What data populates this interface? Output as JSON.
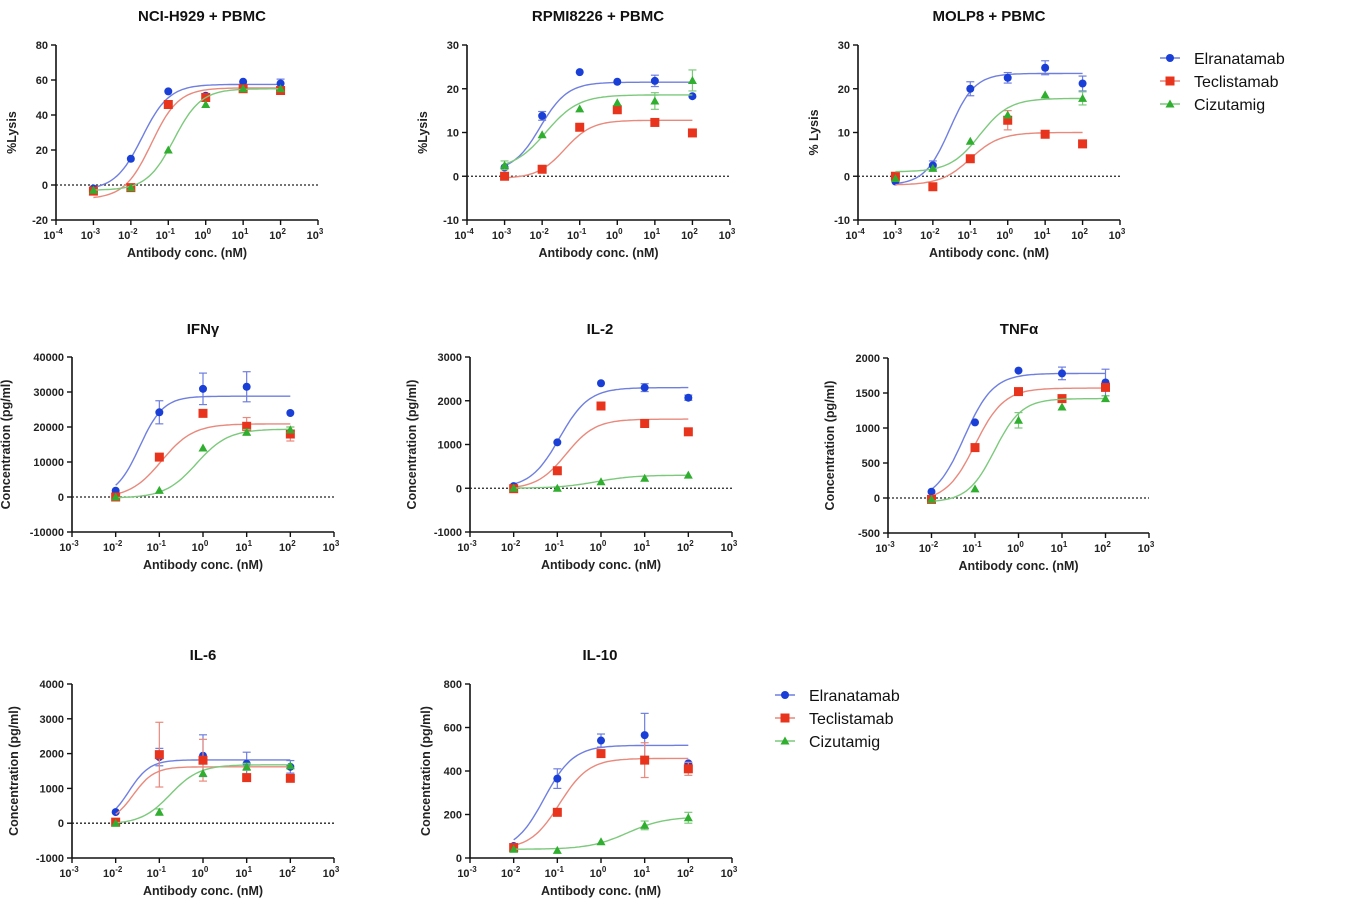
{
  "legend": {
    "entries": [
      {
        "name": "Elranatamab",
        "color": "#1a3fd6",
        "marker": "circle",
        "line_color": "#6f7fe0"
      },
      {
        "name": "Teclistamab",
        "color": "#e8341c",
        "marker": "square",
        "line_color": "#e9897c"
      },
      {
        "name": "Cizutamig",
        "color": "#2fae2f",
        "marker": "triangle",
        "line_color": "#7cc97c"
      }
    ]
  },
  "chart_data": [
    {
      "type": "scatter",
      "title": "NCI-H929 + PBMC",
      "xlabel": "Antibody conc. (nM)",
      "ylabel": "%Lysis",
      "xscale": "log",
      "xlim_exp": [
        -4,
        3
      ],
      "xtick_exps": [
        -4,
        -3,
        -2,
        -1,
        0,
        1,
        2,
        3
      ],
      "ylim": [
        -20,
        80
      ],
      "yticks": [
        -20,
        0,
        20,
        40,
        60,
        80
      ],
      "zero_line": "dotted",
      "x": [
        0.001,
        0.01,
        0.1,
        1,
        10,
        100
      ],
      "series": [
        {
          "name": "Elranatamab",
          "values": [
            -2,
            15,
            53.5,
            51,
            59,
            58
          ],
          "errors": [
            0,
            0,
            0,
            0,
            0,
            2.5
          ],
          "fit": {
            "bottom": -3,
            "top": 57.5,
            "log_ec50": -1.7,
            "hill": 1.2
          }
        },
        {
          "name": "Teclistamab",
          "values": [
            -3.5,
            -1.5,
            46,
            50,
            55,
            54
          ],
          "errors": [
            0,
            0,
            0,
            0,
            0,
            0
          ],
          "fit": {
            "bottom": -8,
            "top": 55.5,
            "log_ec50": -1.45,
            "hill": 1.2
          }
        },
        {
          "name": "Cizutamig",
          "values": [
            -3,
            -1.5,
            20,
            46,
            55,
            55
          ],
          "errors": [
            0,
            0,
            0,
            0,
            0,
            0
          ],
          "fit": {
            "bottom": -3,
            "top": 55,
            "log_ec50": -0.85,
            "hill": 1.2
          }
        }
      ]
    },
    {
      "type": "scatter",
      "title": "RPMI8226 + PBMC",
      "xlabel": "Antibody conc. (nM)",
      "ylabel": "%Lysis",
      "xscale": "log",
      "xlim_exp": [
        -4,
        3
      ],
      "xtick_exps": [
        -4,
        -3,
        -2,
        -1,
        0,
        1,
        2,
        3
      ],
      "ylim": [
        -10,
        30
      ],
      "yticks": [
        -10,
        0,
        10,
        20,
        30
      ],
      "zero_line": "dotted",
      "x": [
        0.001,
        0.01,
        0.1,
        1,
        10,
        100
      ],
      "series": [
        {
          "name": "Elranatamab",
          "values": [
            2,
            13.8,
            23.8,
            21.6,
            21.8,
            18.3
          ],
          "errors": [
            0,
            1,
            0,
            0,
            1.3,
            0
          ],
          "fit": {
            "bottom": 1,
            "top": 21.5,
            "log_ec50": -2.05,
            "hill": 1.2
          }
        },
        {
          "name": "Teclistamab",
          "values": [
            0,
            1.6,
            11.2,
            15.2,
            12.3,
            9.9
          ],
          "errors": [
            0,
            0,
            0,
            0,
            0,
            0
          ],
          "fit": {
            "bottom": -0.5,
            "top": 12.8,
            "log_ec50": -1.4,
            "hill": 1.2
          }
        },
        {
          "name": "Cizutamig",
          "values": [
            2.5,
            9.5,
            15.4,
            16.8,
            17.2,
            21.9
          ],
          "errors": [
            1,
            0,
            0,
            0,
            1.9,
            2.4
          ],
          "fit": {
            "bottom": 1.5,
            "top": 18.6,
            "log_ec50": -1.9,
            "hill": 1.0
          }
        }
      ]
    },
    {
      "type": "scatter",
      "title": "MOLP8 + PBMC",
      "xlabel": "Antibody conc. (nM)",
      "ylabel": "% Lysis",
      "xscale": "log",
      "xlim_exp": [
        -4,
        3
      ],
      "xtick_exps": [
        -4,
        -3,
        -2,
        -1,
        0,
        1,
        2,
        3
      ],
      "ylim": [
        -10,
        30
      ],
      "yticks": [
        -10,
        0,
        10,
        20,
        30
      ],
      "zero_line": "dotted",
      "x": [
        0.001,
        0.01,
        0.1,
        1,
        10,
        100
      ],
      "series": [
        {
          "name": "Elranatamab",
          "values": [
            -1.2,
            2.5,
            20,
            22.5,
            24.8,
            21.2
          ],
          "errors": [
            0,
            1,
            1.6,
            1.2,
            1.6,
            1.7
          ],
          "fit": {
            "bottom": -2,
            "top": 23.5,
            "log_ec50": -1.55,
            "hill": 1.3
          }
        },
        {
          "name": "Teclistamab",
          "values": [
            0,
            -2.4,
            4,
            12.8,
            9.6,
            7.4
          ],
          "errors": [
            0,
            0,
            0,
            2.2,
            0,
            0
          ],
          "fit": {
            "bottom": -2,
            "top": 10,
            "log_ec50": -1.0,
            "hill": 1.1
          }
        },
        {
          "name": "Cizutamig",
          "values": [
            -0.5,
            1.8,
            8,
            14,
            18.6,
            17.8
          ],
          "errors": [
            0,
            0,
            0,
            0,
            0,
            1.5
          ],
          "fit": {
            "bottom": 1,
            "top": 17.8,
            "log_ec50": -0.75,
            "hill": 1.1
          }
        }
      ]
    },
    {
      "type": "scatter",
      "title": "IFNγ",
      "xlabel": "Antibody conc. (nM)",
      "ylabel": "Concentration (pg/ml)",
      "xscale": "log",
      "xlim_exp": [
        -3,
        3
      ],
      "xtick_exps": [
        -3,
        -2,
        -1,
        0,
        1,
        2,
        3
      ],
      "ylim": [
        -10000,
        40000
      ],
      "yticks": [
        -10000,
        0,
        10000,
        20000,
        30000,
        40000
      ],
      "zero_line": "dotted",
      "x": [
        0.01,
        0.1,
        1,
        10,
        100
      ],
      "series": [
        {
          "name": "Elranatamab",
          "values": [
            1800,
            24200,
            30900,
            31500,
            24000
          ],
          "errors": [
            0,
            3300,
            4500,
            4300,
            0
          ],
          "fit": {
            "bottom": 0,
            "top": 28800,
            "log_ec50": -1.45,
            "hill": 1.6
          }
        },
        {
          "name": "Teclistamab",
          "values": [
            0,
            11400,
            23900,
            20200,
            18000
          ],
          "errors": [
            0,
            0,
            0,
            2500,
            2000
          ],
          "fit": {
            "bottom": -300,
            "top": 20900,
            "log_ec50": -0.95,
            "hill": 1.2
          }
        },
        {
          "name": "Cizutamig",
          "values": [
            0,
            1900,
            14000,
            18500,
            19200
          ],
          "errors": [
            0,
            0,
            0,
            800,
            800
          ],
          "fit": {
            "bottom": -300,
            "top": 19400,
            "log_ec50": -0.15,
            "hill": 1.2
          }
        }
      ]
    },
    {
      "type": "scatter",
      "title": "IL-2",
      "xlabel": "Antibody conc. (nM)",
      "ylabel": "Concentration (pg/ml)",
      "xscale": "log",
      "xlim_exp": [
        -3,
        3
      ],
      "xtick_exps": [
        -3,
        -2,
        -1,
        0,
        1,
        2,
        3
      ],
      "ylim": [
        -1000,
        3000
      ],
      "yticks": [
        -1000,
        0,
        1000,
        2000,
        3000
      ],
      "zero_line": "dotted",
      "x": [
        0.01,
        0.1,
        1,
        10,
        100
      ],
      "series": [
        {
          "name": "Elranatamab",
          "values": [
            50,
            1050,
            2400,
            2300,
            2070
          ],
          "errors": [
            0,
            0,
            0,
            90,
            60
          ],
          "fit": {
            "bottom": 0,
            "top": 2300,
            "log_ec50": -0.95,
            "hill": 1.3
          }
        },
        {
          "name": "Teclistamab",
          "values": [
            -10,
            400,
            1880,
            1480,
            1290
          ],
          "errors": [
            0,
            0,
            0,
            0,
            0
          ],
          "fit": {
            "bottom": -20,
            "top": 1580,
            "log_ec50": -0.8,
            "hill": 1.3
          }
        },
        {
          "name": "Cizutamig",
          "values": [
            0,
            0,
            150,
            230,
            300
          ],
          "errors": [
            0,
            0,
            0,
            0,
            0
          ],
          "fit": {
            "bottom": 0,
            "top": 300,
            "log_ec50": -0.1,
            "hill": 1.0
          }
        }
      ]
    },
    {
      "type": "scatter",
      "title": "TNFα",
      "xlabel": "Antibody conc. (nM)",
      "ylabel": "Concentration (pg/ml)",
      "xscale": "log",
      "xlim_exp": [
        -3,
        3
      ],
      "xtick_exps": [
        -3,
        -2,
        -1,
        0,
        1,
        2,
        3
      ],
      "ylim": [
        -500,
        2000
      ],
      "yticks": [
        -500,
        0,
        500,
        1000,
        1500,
        2000
      ],
      "zero_line": "dotted",
      "x": [
        0.01,
        0.1,
        1,
        10,
        100
      ],
      "series": [
        {
          "name": "Elranatamab",
          "values": [
            90,
            1080,
            1820,
            1780,
            1650
          ],
          "errors": [
            0,
            0,
            0,
            90,
            190
          ],
          "fit": {
            "bottom": -50,
            "top": 1780,
            "log_ec50": -1.25,
            "hill": 1.3
          }
        },
        {
          "name": "Teclistamab",
          "values": [
            -20,
            720,
            1520,
            1420,
            1580
          ],
          "errors": [
            0,
            0,
            0,
            0,
            0
          ],
          "fit": {
            "bottom": -50,
            "top": 1570,
            "log_ec50": -1.0,
            "hill": 1.3
          }
        },
        {
          "name": "Cizutamig",
          "values": [
            -20,
            130,
            1110,
            1300,
            1420
          ],
          "errors": [
            0,
            0,
            110,
            0,
            40
          ],
          "fit": {
            "bottom": -60,
            "top": 1420,
            "log_ec50": -0.55,
            "hill": 1.4
          }
        }
      ]
    },
    {
      "type": "scatter",
      "title": "IL-6",
      "xlabel": "Antibody conc. (nM)",
      "ylabel": "Concentration (pg/ml)",
      "xscale": "log",
      "xlim_exp": [
        -3,
        3
      ],
      "xtick_exps": [
        -3,
        -2,
        -1,
        0,
        1,
        2,
        3
      ],
      "ylim": [
        -1000,
        4000
      ],
      "yticks": [
        -1000,
        0,
        1000,
        2000,
        3000,
        4000
      ],
      "zero_line": "dotted",
      "x": [
        0.01,
        0.1,
        1,
        10,
        100
      ],
      "series": [
        {
          "name": "Elranatamab",
          "values": [
            320,
            1900,
            1940,
            1710,
            1620
          ],
          "errors": [
            0,
            250,
            600,
            330,
            180
          ],
          "fit": {
            "bottom": 0,
            "top": 1820,
            "log_ec50": -1.7,
            "hill": 1.8
          }
        },
        {
          "name": "Teclistamab",
          "values": [
            30,
            1970,
            1810,
            1310,
            1290
          ],
          "errors": [
            0,
            930,
            600,
            0,
            0
          ],
          "fit": {
            "bottom": 0,
            "top": 1620,
            "log_ec50": -1.6,
            "hill": 1.8
          }
        },
        {
          "name": "Cizutamig",
          "values": [
            0,
            320,
            1430,
            1620,
            1650
          ],
          "errors": [
            0,
            90,
            0,
            100,
            0
          ],
          "fit": {
            "bottom": -30,
            "top": 1680,
            "log_ec50": -0.75,
            "hill": 1.3
          }
        }
      ]
    },
    {
      "type": "scatter",
      "title": "IL-10",
      "xlabel": "Antibody conc. (nM)",
      "ylabel": "Concentration (pg/ml)",
      "xscale": "log",
      "xlim_exp": [
        -3,
        3
      ],
      "xtick_exps": [
        -3,
        -2,
        -1,
        0,
        1,
        2,
        3
      ],
      "ylim": [
        0,
        800
      ],
      "yticks": [
        0,
        200,
        400,
        600,
        800
      ],
      "zero_line": "none",
      "x": [
        0.01,
        0.1,
        1,
        10,
        100
      ],
      "series": [
        {
          "name": "Elranatamab",
          "values": [
            55,
            365,
            540,
            565,
            435
          ],
          "errors": [
            0,
            45,
            30,
            100,
            0
          ],
          "fit": {
            "bottom": 30,
            "top": 518,
            "log_ec50": -1.3,
            "hill": 1.3
          }
        },
        {
          "name": "Teclistamab",
          "values": [
            48,
            210,
            480,
            450,
            410
          ],
          "errors": [
            0,
            0,
            0,
            80,
            30
          ],
          "fit": {
            "bottom": 40,
            "top": 458,
            "log_ec50": -0.95,
            "hill": 1.3
          }
        },
        {
          "name": "Cizutamig",
          "values": [
            40,
            35,
            75,
            150,
            185
          ],
          "errors": [
            0,
            0,
            0,
            20,
            25
          ],
          "fit": {
            "bottom": 40,
            "top": 190,
            "log_ec50": 0.6,
            "hill": 1.0
          }
        }
      ]
    }
  ]
}
